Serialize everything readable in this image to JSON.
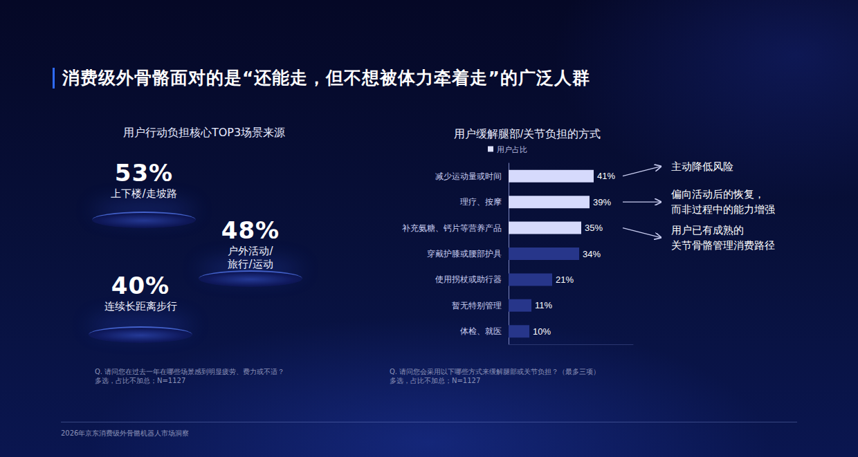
{
  "title": "消费级外骨骼面对的是“还能走，但不想被体力牵着走”的广泛人群",
  "footer": "2026年京东消费级外骨骼机器人市场洞察",
  "stats_panel": {
    "title": "用户行动负担核心TOP3场景来源",
    "items": [
      {
        "text": "53%",
        "label": [
          "上下楼/走坡路"
        ]
      },
      {
        "text": "48%",
        "label": [
          "户外活动/",
          "旅行/运动"
        ]
      },
      {
        "text": "40%",
        "label": [
          "连续长距离步行"
        ]
      }
    ],
    "note": [
      "Q. 请问您在过去一年在哪些场景感到明显疲劳、费力或不适？",
      "多选，占比不加总；N=1127"
    ]
  },
  "chart_data": {
    "type": "bar",
    "title": "用户缓解腿部/关节负担的方式",
    "orientation": "horizontal",
    "categories": [
      "减少运动量或时间",
      "理疗、按摩",
      "补充氨糖、钙片等营养产品",
      "穿戴护膝或腰部护具",
      "使用拐杖或助行器",
      "暂无特别管理",
      "体检、就医"
    ],
    "series": [
      {
        "name": "用户占比",
        "color": "#dfe3ff",
        "values": [
          41,
          39,
          35,
          34,
          21,
          11,
          10
        ],
        "value_labels": [
          "41%",
          "39%",
          "35%",
          "34%",
          "21%",
          "11%",
          "10%"
        ],
        "colors": [
          "#d6dafc",
          "#d6dafc",
          "#d6dafc",
          "#27368a",
          "#27368a",
          "#27368a",
          "#27368a"
        ]
      }
    ],
    "xlim": [
      0,
      60
    ],
    "xticks": [],
    "grid": false,
    "tick_labels": "y",
    "data_labels": true,
    "legend": "top",
    "annotations": [
      {
        "text": [
          "主动降低风险"
        ],
        "target": "减少运动量或时间"
      },
      {
        "text": [
          "偏向活动后的恢复，",
          "而非过程中的能力增强"
        ],
        "target": "理疗、按摩"
      },
      {
        "text": [
          "用户已有成熟的",
          "关节骨骼管理消费路径"
        ],
        "target": "补充氨糖、钙片等营养产品"
      }
    ],
    "note": [
      "Q. 请问您会采用以下哪些方式来缓解腿部或关节负担？（最多三项）",
      "多选，占比不加总；N=1127"
    ]
  }
}
